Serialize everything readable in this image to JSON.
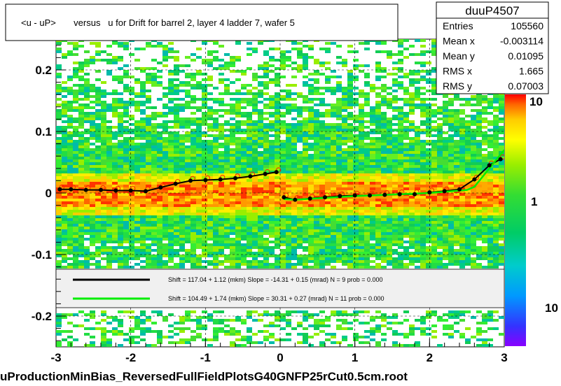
{
  "title": "<u - uP>       versus   u for Drift for barrel 2, layer 4 ladder 7, wafer 5",
  "footer": "uProductionMinBias_ReversedFullFieldPlotsG40GNFP25rCut0.5cm.root",
  "stats": {
    "name": "duuP4507",
    "rows": [
      {
        "label": "Entries",
        "value": "105560"
      },
      {
        "label": "Mean x",
        "value": "-0.003114"
      },
      {
        "label": "Mean y",
        "value": "0.01095"
      },
      {
        "label": "RMS x",
        "value": "1.665"
      },
      {
        "label": "RMS y",
        "value": "0.07003"
      }
    ]
  },
  "legend": [
    {
      "color": "#000000",
      "text": "Shift =    117.04 + 1.12 (mkm) Slope =    -14.31 + 0.15 (mrad)  N = 9 prob = 0.000"
    },
    {
      "color": "#00ee00",
      "text": "Shift =    104.49 + 1.74 (mkm) Slope =    30.31 + 0.27 (mrad)  N = 11 prob = 0.000"
    }
  ],
  "colors": {
    "black_fit": "#000000",
    "green_fit": "#00ee00",
    "red_profile": "#ff0000",
    "heatmap_bg": "#22dd44"
  },
  "chart_data": {
    "type": "heatmap",
    "title": "<u - uP>       versus   u for Drift for barrel 2, layer 4 ladder 7, wafer 5",
    "xlim": [
      -3,
      3
    ],
    "ylim": [
      -0.25,
      0.25
    ],
    "x_ticks": [
      "-3",
      "-2",
      "-1",
      "0",
      "1",
      "2",
      "3"
    ],
    "y_ticks": [
      "0.2",
      "0.1",
      "0",
      "-0.1",
      "-0.2"
    ],
    "colorbar_ticks": [
      "10",
      "1",
      "10"
    ],
    "grid": true,
    "profile_points": [
      {
        "x": -2.95,
        "y": 0.006
      },
      {
        "x": -2.8,
        "y": 0.006
      },
      {
        "x": -2.6,
        "y": 0.005
      },
      {
        "x": -2.4,
        "y": 0.005
      },
      {
        "x": -2.2,
        "y": 0.004
      },
      {
        "x": -2.0,
        "y": 0.004
      },
      {
        "x": -1.8,
        "y": 0.003
      },
      {
        "x": -1.6,
        "y": 0.009
      },
      {
        "x": -1.4,
        "y": 0.015
      },
      {
        "x": -1.2,
        "y": 0.02
      },
      {
        "x": -1.0,
        "y": 0.021
      },
      {
        "x": -0.8,
        "y": 0.022
      },
      {
        "x": -0.6,
        "y": 0.024
      },
      {
        "x": -0.4,
        "y": 0.027
      },
      {
        "x": -0.2,
        "y": 0.031
      },
      {
        "x": -0.05,
        "y": 0.034
      },
      {
        "x": 0.05,
        "y": -0.007
      },
      {
        "x": 0.2,
        "y": -0.011
      },
      {
        "x": 0.4,
        "y": -0.009
      },
      {
        "x": 0.6,
        "y": -0.007
      },
      {
        "x": 0.8,
        "y": -0.005
      },
      {
        "x": 1.0,
        "y": -0.004
      },
      {
        "x": 1.2,
        "y": -0.004
      },
      {
        "x": 1.4,
        "y": -0.003
      },
      {
        "x": 1.6,
        "y": -0.002
      },
      {
        "x": 1.8,
        "y": -0.002
      },
      {
        "x": 2.0,
        "y": 0.001
      },
      {
        "x": 2.2,
        "y": 0.003
      },
      {
        "x": 2.4,
        "y": 0.006
      },
      {
        "x": 2.6,
        "y": 0.022
      },
      {
        "x": 2.8,
        "y": 0.045
      },
      {
        "x": 2.95,
        "y": 0.055
      }
    ],
    "green_fit_segments": [
      [
        [
          0.05,
          -0.01
        ],
        [
          0.2,
          -0.011
        ],
        [
          1.0,
          -0.005
        ],
        [
          2.0,
          0.0
        ],
        [
          2.5,
          0.005
        ],
        [
          2.6,
          0.01
        ],
        [
          3.0,
          0.07
        ]
      ]
    ]
  }
}
